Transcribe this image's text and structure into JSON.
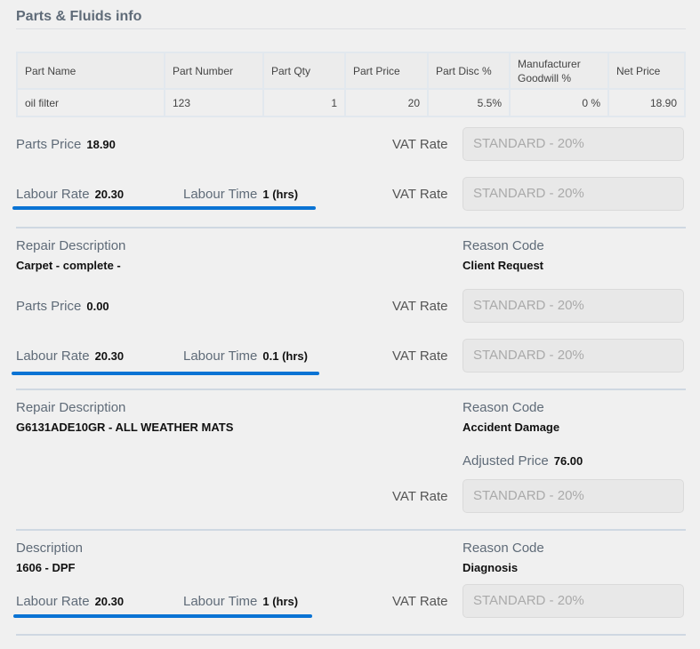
{
  "section_title": "Parts & Fluids info",
  "table": {
    "headers": [
      "Part Name",
      "Part Number",
      "Part Qty",
      "Part Price",
      "Part Disc %",
      "Manufacturer Goodwill %",
      "Net Price"
    ],
    "rows": [
      [
        "oil filter",
        "123",
        "1",
        "20",
        "5.5%",
        "0 %",
        "18.90"
      ]
    ]
  },
  "labels": {
    "parts_price": "Parts Price",
    "vat_rate": "VAT Rate",
    "labour_rate": "Labour Rate",
    "labour_time": "Labour Time",
    "repair_description": "Repair Description",
    "description": "Description",
    "reason_code": "Reason Code",
    "adjusted_price": "Adjusted Price"
  },
  "vat_value": "STANDARD - 20%",
  "highlight_color": "#0a73d4",
  "block1": {
    "parts_price": "18.90",
    "labour_rate": "20.30",
    "labour_time": "1 (hrs)"
  },
  "block2": {
    "description": "Carpet - complete -",
    "reason": "Client Request",
    "parts_price": "0.00",
    "labour_rate": "20.30",
    "labour_time": "0.1 (hrs)"
  },
  "block3": {
    "description": "G6131ADE10GR - ALL WEATHER MATS",
    "reason": "Accident Damage",
    "adjusted_price": "76.00"
  },
  "block4": {
    "description": "1606 - DPF",
    "reason": "Diagnosis",
    "labour_rate": "20.30",
    "labour_time": "1 (hrs)"
  }
}
